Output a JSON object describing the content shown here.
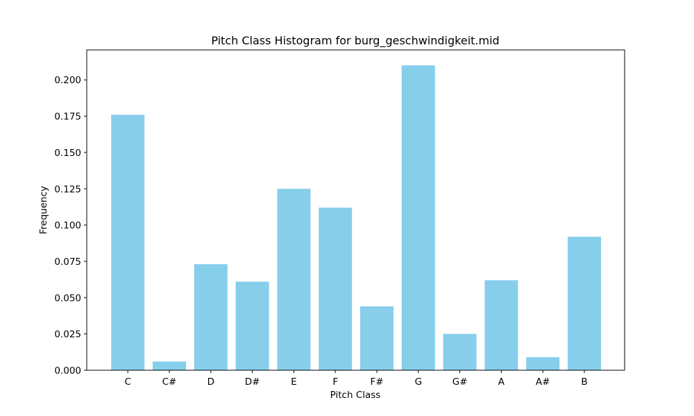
{
  "chart_data": {
    "type": "bar",
    "title": "Pitch Class Histogram for burg_geschwindigkeit.mid",
    "xlabel": "Pitch Class",
    "ylabel": "Frequency",
    "categories": [
      "C",
      "C#",
      "D",
      "D#",
      "E",
      "F",
      "F#",
      "G",
      "G#",
      "A",
      "A#",
      "B"
    ],
    "values": [
      0.176,
      0.006,
      0.073,
      0.061,
      0.125,
      0.112,
      0.044,
      0.21,
      0.025,
      0.062,
      0.009,
      0.092
    ],
    "ylim": [
      0,
      0.22
    ],
    "yticks": [
      "0.000",
      "0.025",
      "0.050",
      "0.075",
      "0.100",
      "0.125",
      "0.150",
      "0.175",
      "0.200"
    ],
    "bar_color": "#87CEEB",
    "grid": false,
    "legend": "none"
  }
}
